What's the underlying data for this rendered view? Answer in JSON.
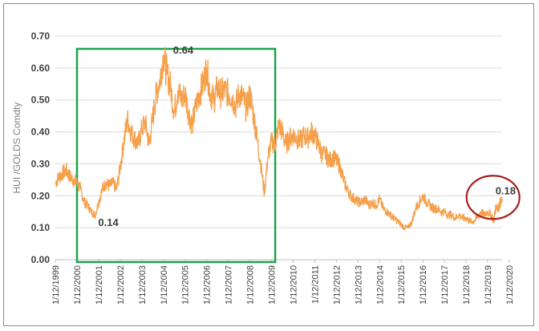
{
  "chart_data": {
    "type": "line",
    "title": "",
    "xlabel": "",
    "ylabel": "HUI /GOLDS Comdty",
    "ylim": [
      0,
      0.7
    ],
    "yticks": [
      "0.00",
      "0.10",
      "0.20",
      "0.30",
      "0.40",
      "0.50",
      "0.60",
      "0.70"
    ],
    "grid": true,
    "legend": "none",
    "xlim": [
      "1999-12-01",
      "2020-08-01"
    ],
    "xticks": [
      "1/12/1999",
      "1/12/2000",
      "1/12/2001",
      "1/12/2002",
      "1/12/2003",
      "1/12/2004",
      "1/12/2005",
      "1/12/2006",
      "1/12/2007",
      "1/12/2008",
      "1/12/2009",
      "1/12/2010",
      "1/12/2011",
      "1/12/2012",
      "1/12/2013",
      "1/12/2014",
      "1/12/2015",
      "1/12/2016",
      "1/12/2017",
      "1/12/2018",
      "1/12/2019",
      "1/12/2020"
    ],
    "series": [
      {
        "name": "",
        "color": "#f5a04a",
        "points": [
          [
            "1999-12-01",
            0.24
          ],
          [
            "2000-02-01",
            0.26
          ],
          [
            "2000-04-01",
            0.27
          ],
          [
            "2000-06-01",
            0.28
          ],
          [
            "2000-08-01",
            0.26
          ],
          [
            "2000-10-01",
            0.25
          ],
          [
            "2000-12-01",
            0.24
          ],
          [
            "2001-02-01",
            0.22
          ],
          [
            "2001-04-01",
            0.18
          ],
          [
            "2001-06-01",
            0.17
          ],
          [
            "2001-08-01",
            0.15
          ],
          [
            "2001-10-01",
            0.14
          ],
          [
            "2001-12-01",
            0.18
          ],
          [
            "2002-02-01",
            0.22
          ],
          [
            "2002-04-01",
            0.24
          ],
          [
            "2002-06-01",
            0.23
          ],
          [
            "2002-08-01",
            0.24
          ],
          [
            "2002-10-01",
            0.22
          ],
          [
            "2002-12-01",
            0.29
          ],
          [
            "2003-02-01",
            0.37
          ],
          [
            "2003-04-01",
            0.44
          ],
          [
            "2003-06-01",
            0.4
          ],
          [
            "2003-08-01",
            0.38
          ],
          [
            "2003-10-01",
            0.36
          ],
          [
            "2003-12-01",
            0.41
          ],
          [
            "2004-02-01",
            0.43
          ],
          [
            "2004-04-01",
            0.36
          ],
          [
            "2004-06-01",
            0.44
          ],
          [
            "2004-08-01",
            0.52
          ],
          [
            "2004-10-01",
            0.56
          ],
          [
            "2004-12-01",
            0.64
          ],
          [
            "2005-02-01",
            0.58
          ],
          [
            "2005-04-01",
            0.54
          ],
          [
            "2005-06-01",
            0.46
          ],
          [
            "2005-08-01",
            0.53
          ],
          [
            "2005-10-01",
            0.5
          ],
          [
            "2005-12-01",
            0.52
          ],
          [
            "2006-02-01",
            0.46
          ],
          [
            "2006-04-01",
            0.42
          ],
          [
            "2006-06-01",
            0.48
          ],
          [
            "2006-08-01",
            0.52
          ],
          [
            "2006-10-01",
            0.55
          ],
          [
            "2006-12-01",
            0.6
          ],
          [
            "2007-02-01",
            0.52
          ],
          [
            "2007-04-01",
            0.5
          ],
          [
            "2007-06-01",
            0.54
          ],
          [
            "2007-08-01",
            0.52
          ],
          [
            "2007-10-01",
            0.53
          ],
          [
            "2007-12-01",
            0.52
          ],
          [
            "2008-02-01",
            0.51
          ],
          [
            "2008-04-01",
            0.48
          ],
          [
            "2008-06-01",
            0.52
          ],
          [
            "2008-08-01",
            0.51
          ],
          [
            "2008-10-01",
            0.47
          ],
          [
            "2008-12-01",
            0.52
          ],
          [
            "2009-02-01",
            0.45
          ],
          [
            "2009-04-01",
            0.38
          ],
          [
            "2009-06-01",
            0.3
          ],
          [
            "2009-08-01",
            0.21
          ],
          [
            "2009-10-01",
            0.32
          ],
          [
            "2009-12-01",
            0.37
          ],
          [
            "2010-02-01",
            0.36
          ],
          [
            "2010-04-01",
            0.42
          ],
          [
            "2010-06-01",
            0.4
          ],
          [
            "2010-08-01",
            0.36
          ],
          [
            "2010-10-01",
            0.38
          ],
          [
            "2010-12-01",
            0.39
          ],
          [
            "2011-02-01",
            0.38
          ],
          [
            "2011-04-01",
            0.37
          ],
          [
            "2011-06-01",
            0.39
          ],
          [
            "2011-08-01",
            0.38
          ],
          [
            "2011-10-01",
            0.4
          ],
          [
            "2011-12-01",
            0.39
          ],
          [
            "2012-02-01",
            0.36
          ],
          [
            "2012-04-01",
            0.33
          ],
          [
            "2012-06-01",
            0.33
          ],
          [
            "2012-08-01",
            0.31
          ],
          [
            "2012-10-01",
            0.32
          ],
          [
            "2012-12-01",
            0.31
          ],
          [
            "2013-02-01",
            0.29
          ],
          [
            "2013-04-01",
            0.25
          ],
          [
            "2013-06-01",
            0.22
          ],
          [
            "2013-08-01",
            0.2
          ],
          [
            "2013-10-01",
            0.19
          ],
          [
            "2013-12-01",
            0.18
          ],
          [
            "2014-02-01",
            0.18
          ],
          [
            "2014-04-01",
            0.19
          ],
          [
            "2014-06-01",
            0.17
          ],
          [
            "2014-08-01",
            0.18
          ],
          [
            "2014-10-01",
            0.17
          ],
          [
            "2014-12-01",
            0.19
          ],
          [
            "2015-02-01",
            0.16
          ],
          [
            "2015-04-01",
            0.15
          ],
          [
            "2015-06-01",
            0.14
          ],
          [
            "2015-08-01",
            0.13
          ],
          [
            "2015-10-01",
            0.12
          ],
          [
            "2015-12-01",
            0.11
          ],
          [
            "2016-02-01",
            0.1
          ],
          [
            "2016-04-01",
            0.1
          ],
          [
            "2016-06-01",
            0.12
          ],
          [
            "2016-08-01",
            0.16
          ],
          [
            "2016-10-01",
            0.18
          ],
          [
            "2016-12-01",
            0.2
          ],
          [
            "2017-02-01",
            0.18
          ],
          [
            "2017-04-01",
            0.17
          ],
          [
            "2017-06-01",
            0.16
          ],
          [
            "2017-08-01",
            0.16
          ],
          [
            "2017-10-01",
            0.15
          ],
          [
            "2017-12-01",
            0.15
          ],
          [
            "2018-02-01",
            0.14
          ],
          [
            "2018-04-01",
            0.14
          ],
          [
            "2018-06-01",
            0.13
          ],
          [
            "2018-08-01",
            0.14
          ],
          [
            "2018-10-01",
            0.13
          ],
          [
            "2018-12-01",
            0.13
          ],
          [
            "2019-02-01",
            0.12
          ],
          [
            "2019-04-01",
            0.12
          ],
          [
            "2019-06-01",
            0.13
          ],
          [
            "2019-08-01",
            0.15
          ],
          [
            "2019-10-01",
            0.14
          ],
          [
            "2019-12-01",
            0.15
          ],
          [
            "2020-02-01",
            0.14
          ],
          [
            "2020-03-15",
            0.12
          ],
          [
            "2020-04-01",
            0.15
          ],
          [
            "2020-05-01",
            0.17
          ],
          [
            "2020-06-01",
            0.16
          ],
          [
            "2020-07-01",
            0.18
          ],
          [
            "2020-08-01",
            0.18
          ]
        ]
      }
    ],
    "annotations": [
      {
        "text": "0.64",
        "x": "2004-12-01",
        "y": 0.64
      },
      {
        "text": "0.14",
        "x": "2001-10-01",
        "y": 0.14
      },
      {
        "text": "0.18",
        "x": "2020-07-01",
        "y": 0.18
      }
    ],
    "highlight_box": {
      "x_from": "2000-12-01",
      "x_to": "2010-02-01",
      "y_from": 0.0,
      "y_to": 0.66,
      "color": "#1fa34a"
    },
    "highlight_circle": {
      "x": "2020-03-01",
      "y": 0.19,
      "color": "#a81c1c"
    },
    "colors": {
      "gridline": "#d9d9d9",
      "axis": "#bfbfbf"
    }
  }
}
